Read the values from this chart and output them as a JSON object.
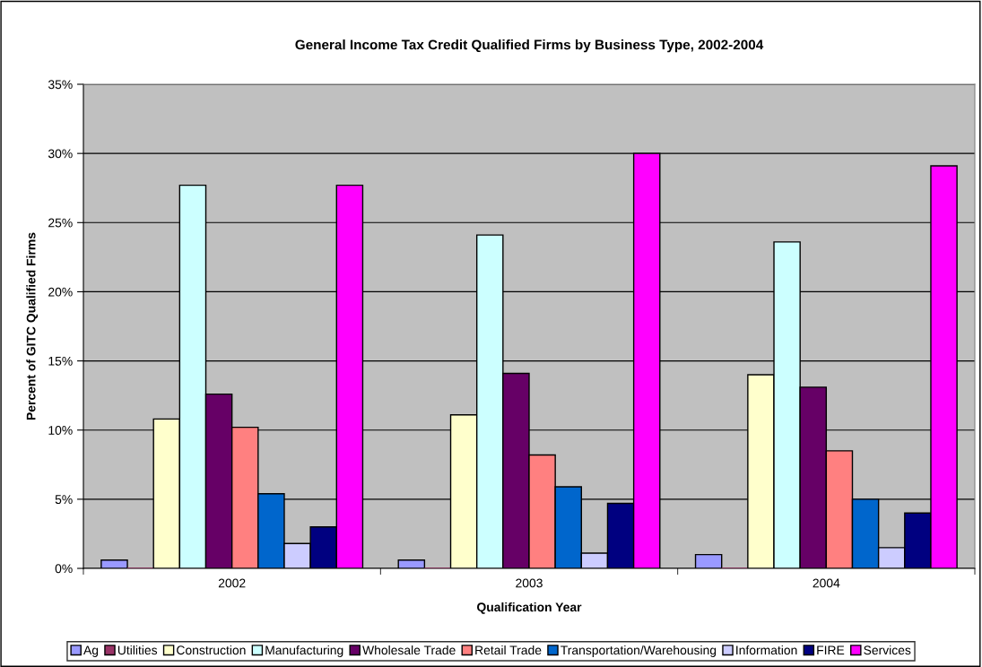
{
  "chart_data": {
    "type": "bar",
    "title": "General Income Tax Credit Qualified Firms by Business Type, 2002-2004",
    "xlabel": "Qualification Year",
    "ylabel": "Percent of GITC Qualified Firms",
    "categories": [
      "2002",
      "2003",
      "2004"
    ],
    "series": [
      {
        "name": "Ag",
        "color": "#9999ff",
        "values": [
          0.6,
          0.6,
          1.0
        ]
      },
      {
        "name": "Utilities",
        "color": "#993366",
        "values": [
          0,
          0,
          0
        ]
      },
      {
        "name": "Construction",
        "color": "#ffffcc",
        "values": [
          10.8,
          11.1,
          14.0
        ]
      },
      {
        "name": "Manufacturing",
        "color": "#ccffff",
        "values": [
          27.7,
          24.1,
          23.6
        ]
      },
      {
        "name": "Wholesale Trade",
        "color": "#660066",
        "values": [
          12.6,
          14.1,
          13.1
        ]
      },
      {
        "name": "Retail Trade",
        "color": "#ff8080",
        "values": [
          10.2,
          8.2,
          8.5
        ]
      },
      {
        "name": "Transportation/Warehousing",
        "color": "#0066cc",
        "values": [
          5.4,
          5.9,
          5.0
        ]
      },
      {
        "name": "Information",
        "color": "#ccccff",
        "values": [
          1.8,
          1.1,
          1.5
        ]
      },
      {
        "name": "FIRE",
        "color": "#000080",
        "values": [
          3.0,
          4.7,
          4.0
        ]
      },
      {
        "name": "Services",
        "color": "#ff00ff",
        "values": [
          27.7,
          30.0,
          29.1
        ]
      }
    ],
    "ylim": [
      0,
      35
    ],
    "yticks": [
      {
        "value": 0,
        "label": "0%"
      },
      {
        "value": 5,
        "label": "5%"
      },
      {
        "value": 10,
        "label": "10%"
      },
      {
        "value": 15,
        "label": "15%"
      },
      {
        "value": 20,
        "label": "20%"
      },
      {
        "value": 25,
        "label": "25%"
      },
      {
        "value": 30,
        "label": "30%"
      },
      {
        "value": 35,
        "label": "35%"
      }
    ],
    "grid": "y",
    "legend": "bottom"
  }
}
